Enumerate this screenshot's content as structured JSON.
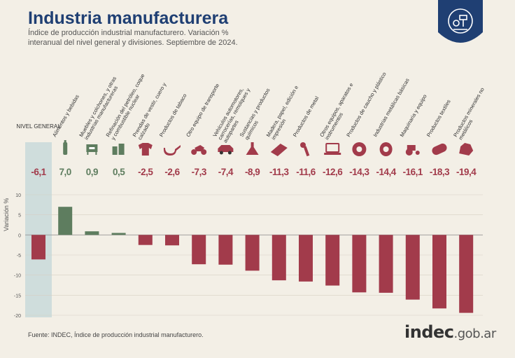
{
  "title": "Industria manufacturera",
  "subtitle": "Índice de producción industrial manufacturero. Variación % interanual del nivel general y divisiones. Septiembre de 2024.",
  "source": "Fuente: INDEC, Índice de producción industrial manufacturero.",
  "brand": {
    "main": "indec",
    "suffix": ".gob.ar"
  },
  "colors": {
    "positive": "#5e7d5f",
    "negative": "#a23b4b",
    "highlight": "#cfdddc",
    "title": "#1f3f73"
  },
  "chart_data": {
    "type": "bar",
    "ylabel": "Variación %",
    "ylim": [
      -20,
      10
    ],
    "yticks": [
      10,
      5,
      0,
      -5,
      -10,
      -15,
      -20
    ],
    "highlight_index": 0,
    "categories": [
      "NIVEL GENERAL",
      "Alimentos y bebidas",
      "Muebles y colchones, y otras industrias manufactureras",
      "Refinación del petróleo, coque y combustible nuclear",
      "Prendas de vestir, cuero y calzado",
      "Productos de tabaco",
      "Otro equipo de transporte",
      "Vehículos automotores, carrocerías, remolques y autopartes",
      "Sustancias y productos químicos",
      "Madera, papel, edición e impresión",
      "Productos de metal",
      "Otros equipos, aparatos e instrumentos",
      "Productos de caucho y plástico",
      "Industrias metálicas básicas",
      "Maquinaria y equipo",
      "Productos textiles",
      "Productos minerales no metálicos"
    ],
    "icons": [
      "",
      "bottle-icon",
      "furniture-icon",
      "refinery-icon",
      "shirt-icon",
      "pipe-icon",
      "motorcycle-icon",
      "car-icon",
      "flask-icon",
      "paper-icon",
      "wrench-icon",
      "laptop-icon",
      "tire-icon",
      "metal-icon",
      "tractor-icon",
      "textile-roll-icon",
      "mineral-icon"
    ],
    "values": [
      -6.1,
      7.0,
      0.9,
      0.5,
      -2.5,
      -2.6,
      -7.3,
      -7.4,
      -8.9,
      -11.3,
      -11.6,
      -12.6,
      -14.3,
      -14.4,
      -16.1,
      -18.3,
      -19.4
    ],
    "value_labels": [
      "-6,1",
      "7,0",
      "0,9",
      "0,5",
      "-2,5",
      "-2,6",
      "-7,3",
      "-7,4",
      "-8,9",
      "-11,3",
      "-11,6",
      "-12,6",
      "-14,3",
      "-14,4",
      "-16,1",
      "-18,3",
      "-19,4"
    ]
  }
}
